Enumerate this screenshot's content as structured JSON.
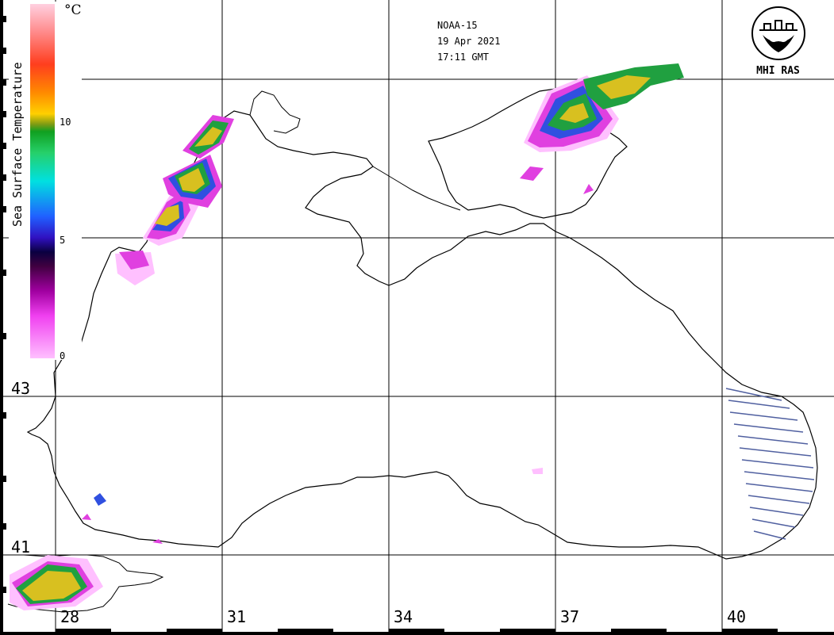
{
  "satellite": "NOAA-15",
  "date": "19 Apr 2021",
  "time": "17:11 GMT",
  "logo_label": "MHI RAS",
  "colorbar": {
    "title": "Sea Surface Temperature",
    "unit": "°C",
    "ticks": [
      "10",
      "5",
      "0"
    ]
  },
  "latitude_labels": [
    "43",
    "41"
  ],
  "longitude_labels": [
    "28",
    "31",
    "34",
    "37",
    "40"
  ],
  "colors": {
    "grid": "#000000",
    "coast": "#000000",
    "sst_warm": "#d8c020",
    "sst_green": "#20a040",
    "sst_blue": "#3050e0",
    "sst_magenta": "#e040e0",
    "sst_pink": "#ffc0ff"
  }
}
